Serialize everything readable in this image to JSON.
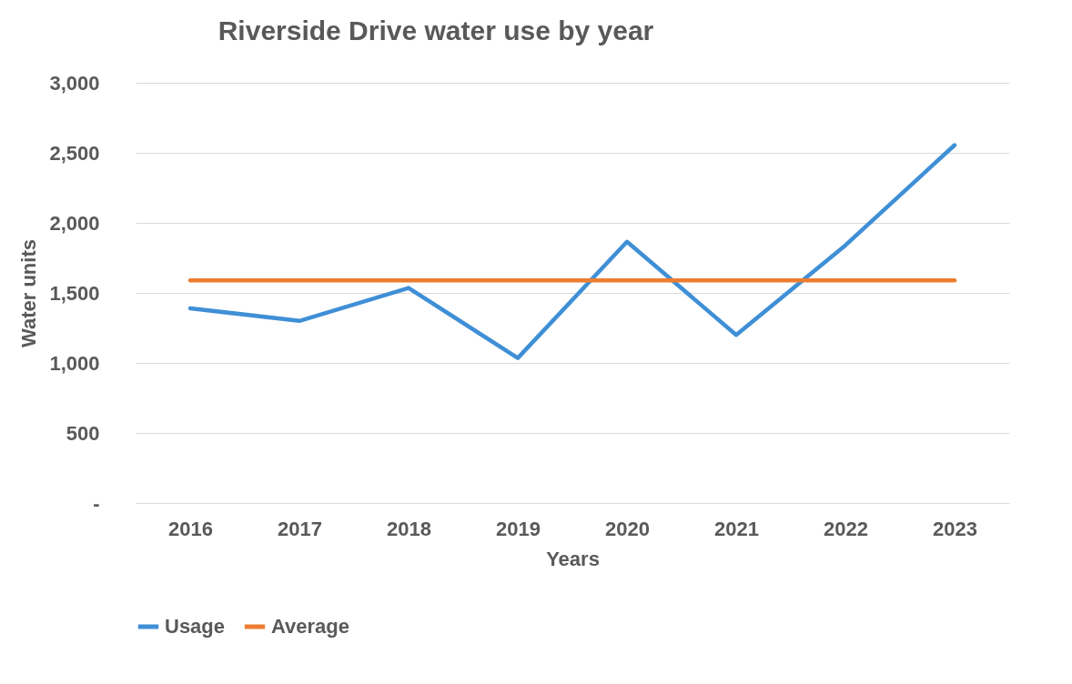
{
  "chart_data": {
    "type": "line",
    "title": "Riverside Drive water use by year",
    "xlabel": "Years",
    "ylabel": "Water units",
    "categories": [
      "2016",
      "2017",
      "2018",
      "2019",
      "2020",
      "2021",
      "2022",
      "2023"
    ],
    "series": [
      {
        "name": "Usage",
        "color": "#3f8fd6",
        "values": [
          1390,
          1300,
          1535,
          1035,
          1865,
          1200,
          1840,
          2555
        ]
      },
      {
        "name": "Average",
        "color": "#ed7d31",
        "values": [
          1590,
          1590,
          1590,
          1590,
          1590,
          1590,
          1590,
          1590
        ]
      }
    ],
    "ylim": [
      0,
      3000
    ],
    "yticks": [
      {
        "value": 0,
        "label": "-"
      },
      {
        "value": 500,
        "label": "500"
      },
      {
        "value": 1000,
        "label": "1,000"
      },
      {
        "value": 1500,
        "label": "1,500"
      },
      {
        "value": 2000,
        "label": "2,000"
      },
      {
        "value": 2500,
        "label": "2,500"
      },
      {
        "value": 3000,
        "label": "3,000"
      }
    ],
    "grid": "y",
    "legend": "bottom",
    "marker": "none",
    "line_style": "solid"
  }
}
